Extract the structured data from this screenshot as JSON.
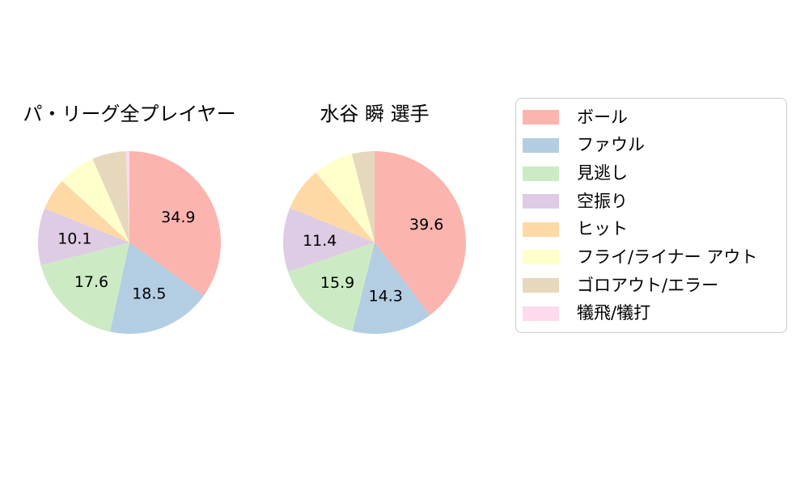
{
  "figure": {
    "background": "#ffffff",
    "text_color": "#000000"
  },
  "chart_data": [
    {
      "type": "pie",
      "title": "パ・リーグ全プレイヤー",
      "labels": [
        "ボール",
        "ファウル",
        "見逃し",
        "空振り",
        "ヒット",
        "フライ/ライナー アウト",
        "ゴロアウト/エラー",
        "犠飛/犠打"
      ],
      "values": [
        34.9,
        18.5,
        17.6,
        10.1,
        5.7,
        6.6,
        6.0,
        0.6
      ],
      "colors": [
        "#fbb4ae",
        "#b3cde3",
        "#ccebc5",
        "#decbe4",
        "#fed9a6",
        "#ffffcc",
        "#e5d8bd",
        "#fddaec"
      ],
      "value_labels_shown": [
        "34.9",
        "18.5",
        "17.6",
        "10.1"
      ],
      "value_label_min_pct": 10,
      "value_label_radius_fraction": 0.6,
      "start_angle": "top",
      "direction": "clockwise"
    },
    {
      "type": "pie",
      "title": "水谷 瞬 選手",
      "labels": [
        "ボール",
        "ファウル",
        "見逃し",
        "空振り",
        "ヒット",
        "フライ/ライナー アウト",
        "ゴロアウト/エラー",
        "犠飛/犠打"
      ],
      "values": [
        39.6,
        14.3,
        15.9,
        11.4,
        7.7,
        7.1,
        4.0,
        0.0
      ],
      "colors": [
        "#fbb4ae",
        "#b3cde3",
        "#ccebc5",
        "#decbe4",
        "#fed9a6",
        "#ffffcc",
        "#e5d8bd",
        "#fddaec"
      ],
      "value_labels_shown": [
        "39.6",
        "14.3",
        "15.9",
        "11.4"
      ],
      "value_label_min_pct": 10,
      "value_label_radius_fraction": 0.6,
      "start_angle": "top",
      "direction": "clockwise"
    }
  ],
  "legend": {
    "position": "right",
    "border_color": "#cccccc",
    "items": [
      {
        "label": "ボール",
        "color": "#fbb4ae"
      },
      {
        "label": "ファウル",
        "color": "#b3cde3"
      },
      {
        "label": "見逃し",
        "color": "#ccebc5"
      },
      {
        "label": "空振り",
        "color": "#decbe4"
      },
      {
        "label": "ヒット",
        "color": "#fed9a6"
      },
      {
        "label": "フライ/ライナー アウト",
        "color": "#ffffcc"
      },
      {
        "label": "ゴロアウト/エラー",
        "color": "#e5d8bd"
      },
      {
        "label": "犠飛/犠打",
        "color": "#fddaec"
      }
    ]
  }
}
